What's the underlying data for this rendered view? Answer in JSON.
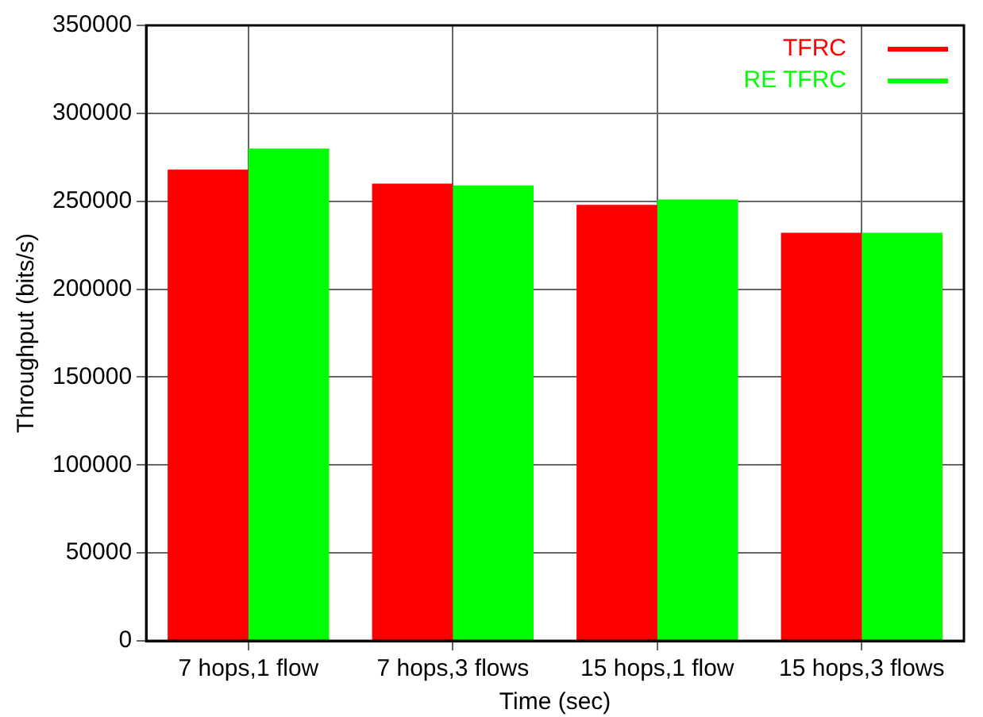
{
  "chart_data": {
    "type": "bar",
    "xlabel": "Time (sec)",
    "ylabel": "Throughput (bits/s)",
    "categories": [
      "7 hops,1 flow",
      "7 hops,3 flows",
      "15 hops,1 flow",
      "15 hops,3 flows"
    ],
    "series": [
      {
        "name": "TFRC",
        "color": "#ff0000",
        "values": [
          268000,
          260000,
          248000,
          232000
        ]
      },
      {
        "name": "RE TFRC",
        "color": "#00ff00",
        "values": [
          280000,
          259000,
          251000,
          232000
        ]
      }
    ],
    "ylim": [
      0,
      350000
    ],
    "yticks": [
      0,
      50000,
      100000,
      150000,
      200000,
      250000,
      300000,
      350000
    ],
    "grid": true,
    "legend": "top right"
  }
}
